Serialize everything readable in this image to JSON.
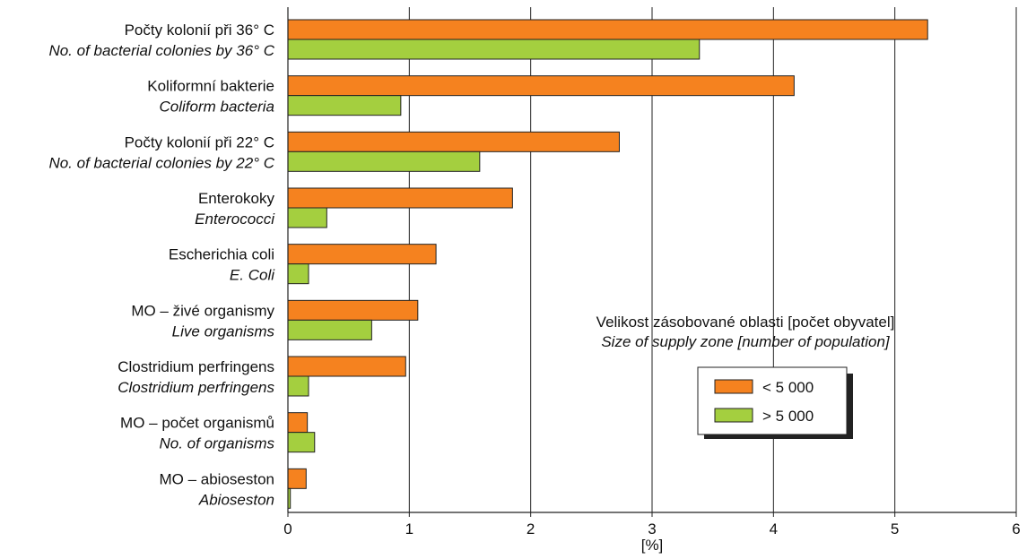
{
  "chart_data": {
    "type": "bar",
    "orientation": "horizontal",
    "categories": [
      {
        "cz": "Počty kolonií při 36° C",
        "en": "No. of bacterial colonies by 36° C"
      },
      {
        "cz": "Koliformní bakterie",
        "en": "Coliform bacteria"
      },
      {
        "cz": "Počty kolonií při 22° C",
        "en": "No. of bacterial colonies by 22° C"
      },
      {
        "cz": "Enterokoky",
        "en": "Enterococci"
      },
      {
        "cz": "Escherichia coli",
        "en": "E. Coli"
      },
      {
        "cz": "MO – živé organismy",
        "en": "Live organisms"
      },
      {
        "cz": "Clostridium perfringens",
        "en": "Clostridium perfringens"
      },
      {
        "cz": "MO – počet organismů",
        "en": "No. of organisms"
      },
      {
        "cz": "MO – abioseston",
        "en": "Abioseston"
      }
    ],
    "series": [
      {
        "name": "< 5 000",
        "color": "#f5821f",
        "values": [
          5.27,
          4.17,
          2.73,
          1.85,
          1.22,
          1.07,
          0.97,
          0.16,
          0.15
        ]
      },
      {
        "name": "> 5 000",
        "color": "#a4cf3f",
        "values": [
          3.39,
          0.93,
          1.58,
          0.32,
          0.17,
          0.69,
          0.17,
          0.22,
          0.02
        ]
      }
    ],
    "xlabel": "[%]",
    "xlim": [
      0,
      6
    ],
    "xticks": [
      "0",
      "1",
      "2",
      "3",
      "4",
      "5",
      "6"
    ],
    "grid": "vertical",
    "legend": {
      "title": "Velikost zásobované oblasti [počet obyvatel]",
      "subtitle": "Size of supply zone [number of population]",
      "placement": "right-middle"
    }
  }
}
